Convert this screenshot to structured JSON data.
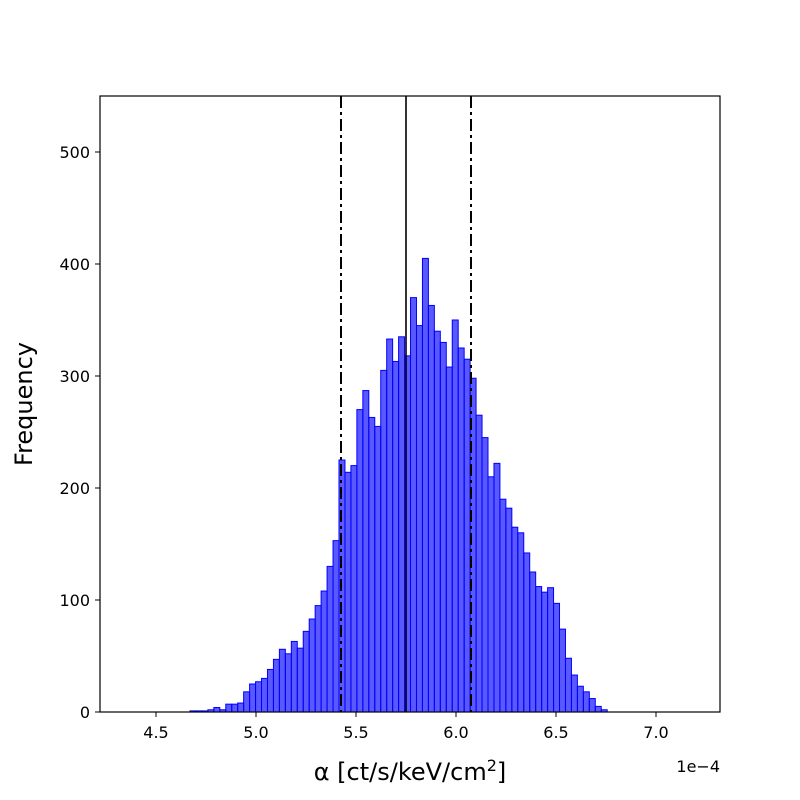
{
  "chart_data": {
    "type": "bar",
    "subtype": "histogram",
    "xlabel": "α [ct/s/keV/cm",
    "xlabel_superscript": "2",
    "xlabel_close": "]",
    "ylabel": "Frequency",
    "x_offset_label": "1e−4",
    "x_tick_values": [
      4.5,
      5.0,
      5.5,
      6.0,
      6.5,
      7.0
    ],
    "x_tick_labels": [
      "4.5",
      "5.0",
      "5.5",
      "6.0",
      "6.5",
      "7.0"
    ],
    "y_tick_values": [
      0,
      100,
      200,
      300,
      400,
      500
    ],
    "y_tick_labels": [
      "0",
      "100",
      "200",
      "300",
      "400",
      "500"
    ],
    "xlim": [
      4.22,
      7.32
    ],
    "ylim": [
      0,
      550
    ],
    "bin_start": 4.67,
    "bin_width": 0.0298,
    "bar_color": "#0000ff",
    "bar_opacity": 0.65,
    "bar_edge_color": "#0000ff",
    "counts": [
      1,
      1,
      1,
      2,
      4,
      2,
      7,
      7,
      8,
      18,
      25,
      27,
      30,
      38,
      47,
      56,
      52,
      63,
      57,
      72,
      83,
      95,
      108,
      130,
      153,
      225,
      214,
      220,
      270,
      287,
      263,
      255,
      305,
      333,
      313,
      335,
      318,
      370,
      345,
      405,
      363,
      340,
      330,
      308,
      350,
      325,
      315,
      298,
      265,
      245,
      210,
      222,
      190,
      182,
      165,
      160,
      142,
      125,
      112,
      107,
      111,
      97,
      74,
      48,
      33,
      23,
      18,
      12,
      5,
      2
    ],
    "vlines": [
      {
        "x": 5.425,
        "style": "dashdot"
      },
      {
        "x": 5.75,
        "style": "solid"
      },
      {
        "x": 6.075,
        "style": "dashdot"
      }
    ],
    "grid": false,
    "legend": "none"
  }
}
